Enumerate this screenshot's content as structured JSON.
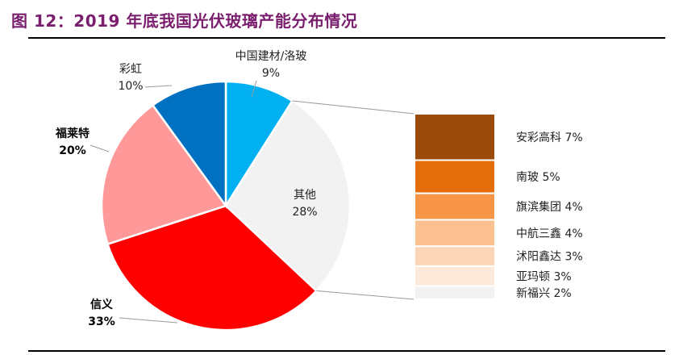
{
  "title": "图 12：2019 年底我国光伏玻璃产能分布情况",
  "colors": {
    "title": "#7a1f6e",
    "pie": [
      "#ffffff"
    ],
    "bar_stack": [
      "#9b4a0c",
      "#e46c0a",
      "#f79646",
      "#fac090",
      "#fbd5b5",
      "#fde9d9",
      "#f2f2f2"
    ]
  },
  "chart_data": [
    {
      "type": "pie",
      "slices": [
        {
          "name": "中国建材/洛玻",
          "value": 9,
          "label": "9%",
          "color": "#00b0f0",
          "bold": false
        },
        {
          "name": "其他",
          "value": 28,
          "label": "28%",
          "color": "#f2f2f2",
          "bold": false
        },
        {
          "name": "信义",
          "value": 33,
          "label": "33%",
          "color": "#ff0000",
          "bold": true
        },
        {
          "name": "福莱特",
          "value": 20,
          "label": "20%",
          "color": "#ff9999",
          "bold": true
        },
        {
          "name": "彩虹",
          "value": 10,
          "label": "10%",
          "color": "#0070c0",
          "bold": false
        }
      ]
    },
    {
      "type": "bar",
      "stacked": true,
      "breakdown_of": "其他",
      "segments": [
        {
          "name": "安彩高科",
          "value": 7,
          "label": "安彩高科 7%",
          "color": "#9b4a0c"
        },
        {
          "name": "南玻",
          "value": 5,
          "label": "南玻 5%",
          "color": "#e46c0a"
        },
        {
          "name": "旗滨集团",
          "value": 4,
          "label": "旗滨集团 4%",
          "color": "#f79646"
        },
        {
          "name": "中航三鑫",
          "value": 4,
          "label": "中航三鑫 4%",
          "color": "#fac090"
        },
        {
          "name": "沭阳鑫达",
          "value": 3,
          "label": "沭阳鑫达 3%",
          "color": "#fbd5b5"
        },
        {
          "name": "亚玛顿",
          "value": 3,
          "label": "亚玛顿 3%",
          "color": "#fde9d9"
        },
        {
          "name": "新福兴",
          "value": 2,
          "label": "新福兴 2%",
          "color": "#f2f2f2"
        }
      ]
    }
  ]
}
